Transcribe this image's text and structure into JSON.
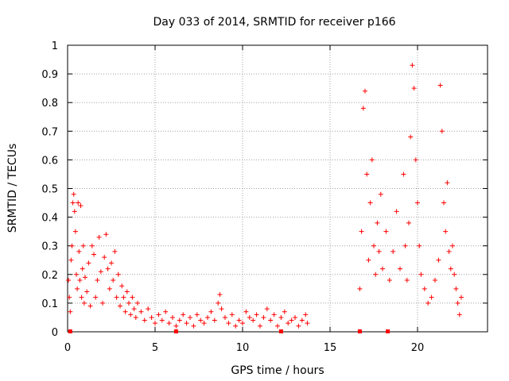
{
  "chart_data": {
    "type": "scatter",
    "title": "Day 033 of 2014, SRMTID for receiver p166",
    "xlabel": "GPS time / hours",
    "ylabel": "SRMTID / TECUs",
    "xlim": [
      0,
      24
    ],
    "ylim": [
      0,
      1
    ],
    "xticks": [
      0,
      5,
      10,
      15,
      20
    ],
    "xtick_labels": [
      "0",
      "5",
      "10",
      "15",
      "20"
    ],
    "yticks": [
      0,
      0.1,
      0.2,
      0.3,
      0.4,
      0.5,
      0.6,
      0.7,
      0.8,
      0.9,
      1
    ],
    "ytick_labels": [
      "0",
      "0.1",
      "0.2",
      "0.3",
      "0.4",
      "0.5",
      "0.6",
      "0.7",
      "0.8",
      "0.9",
      "1"
    ],
    "grid": true,
    "series": [
      {
        "name": "SRMTID",
        "marker": "plus",
        "color": "#ff0000",
        "points": [
          [
            0.05,
            0.18
          ],
          [
            0.1,
            0.12
          ],
          [
            0.15,
            0.07
          ],
          [
            0.2,
            0.25
          ],
          [
            0.25,
            0.3
          ],
          [
            0.3,
            0.45
          ],
          [
            0.35,
            0.48
          ],
          [
            0.4,
            0.42
          ],
          [
            0.45,
            0.35
          ],
          [
            0.5,
            0.2
          ],
          [
            0.55,
            0.15
          ],
          [
            0.6,
            0.45
          ],
          [
            0.65,
            0.28
          ],
          [
            0.7,
            0.18
          ],
          [
            0.75,
            0.44
          ],
          [
            0.8,
            0.12
          ],
          [
            0.85,
            0.22
          ],
          [
            0.9,
            0.3
          ],
          [
            0.95,
            0.1
          ],
          [
            1.0,
            0.19
          ],
          [
            1.1,
            0.14
          ],
          [
            1.2,
            0.24
          ],
          [
            1.3,
            0.09
          ],
          [
            1.4,
            0.3
          ],
          [
            1.5,
            0.27
          ],
          [
            1.6,
            0.12
          ],
          [
            1.7,
            0.18
          ],
          [
            1.8,
            0.33
          ],
          [
            1.9,
            0.21
          ],
          [
            2.0,
            0.1
          ],
          [
            2.1,
            0.26
          ],
          [
            2.2,
            0.34
          ],
          [
            2.3,
            0.22
          ],
          [
            2.4,
            0.15
          ],
          [
            2.5,
            0.24
          ],
          [
            2.6,
            0.18
          ],
          [
            2.7,
            0.28
          ],
          [
            2.8,
            0.12
          ],
          [
            2.9,
            0.2
          ],
          [
            3.0,
            0.09
          ],
          [
            3.1,
            0.16
          ],
          [
            3.2,
            0.12
          ],
          [
            3.3,
            0.07
          ],
          [
            3.4,
            0.14
          ],
          [
            3.5,
            0.1
          ],
          [
            3.6,
            0.06
          ],
          [
            3.7,
            0.12
          ],
          [
            3.8,
            0.08
          ],
          [
            3.9,
            0.05
          ],
          [
            4.0,
            0.1
          ],
          [
            4.2,
            0.07
          ],
          [
            4.4,
            0.04
          ],
          [
            4.6,
            0.08
          ],
          [
            4.8,
            0.05
          ],
          [
            5.0,
            0.03
          ],
          [
            5.2,
            0.06
          ],
          [
            5.4,
            0.04
          ],
          [
            5.6,
            0.07
          ],
          [
            5.8,
            0.03
          ],
          [
            6.0,
            0.05
          ],
          [
            6.2,
            0.02
          ],
          [
            6.4,
            0.04
          ],
          [
            6.6,
            0.06
          ],
          [
            6.8,
            0.03
          ],
          [
            7.0,
            0.05
          ],
          [
            7.2,
            0.02
          ],
          [
            7.4,
            0.06
          ],
          [
            7.6,
            0.04
          ],
          [
            7.8,
            0.03
          ],
          [
            8.0,
            0.05
          ],
          [
            8.2,
            0.07
          ],
          [
            8.4,
            0.04
          ],
          [
            8.6,
            0.1
          ],
          [
            8.7,
            0.13
          ],
          [
            8.8,
            0.08
          ],
          [
            9.0,
            0.05
          ],
          [
            9.2,
            0.03
          ],
          [
            9.4,
            0.06
          ],
          [
            9.6,
            0.02
          ],
          [
            9.8,
            0.04
          ],
          [
            10.0,
            0.03
          ],
          [
            10.2,
            0.07
          ],
          [
            10.4,
            0.05
          ],
          [
            10.6,
            0.04
          ],
          [
            10.8,
            0.06
          ],
          [
            11.0,
            0.02
          ],
          [
            11.2,
            0.05
          ],
          [
            11.4,
            0.08
          ],
          [
            11.6,
            0.04
          ],
          [
            11.8,
            0.06
          ],
          [
            12.0,
            0.02
          ],
          [
            12.2,
            0.05
          ],
          [
            12.4,
            0.07
          ],
          [
            12.6,
            0.03
          ],
          [
            12.8,
            0.04
          ],
          [
            13.0,
            0.05
          ],
          [
            13.2,
            0.02
          ],
          [
            13.4,
            0.04
          ],
          [
            13.6,
            0.06
          ],
          [
            13.7,
            0.03
          ],
          [
            16.7,
            0.15
          ],
          [
            16.8,
            0.35
          ],
          [
            16.9,
            0.78
          ],
          [
            17.0,
            0.84
          ],
          [
            17.1,
            0.55
          ],
          [
            17.2,
            0.25
          ],
          [
            17.3,
            0.45
          ],
          [
            17.4,
            0.6
          ],
          [
            17.5,
            0.3
          ],
          [
            17.6,
            0.2
          ],
          [
            17.7,
            0.38
          ],
          [
            17.8,
            0.28
          ],
          [
            17.9,
            0.48
          ],
          [
            18.0,
            0.22
          ],
          [
            18.2,
            0.35
          ],
          [
            18.4,
            0.18
          ],
          [
            18.6,
            0.28
          ],
          [
            18.8,
            0.42
          ],
          [
            19.0,
            0.22
          ],
          [
            19.2,
            0.55
          ],
          [
            19.3,
            0.3
          ],
          [
            19.4,
            0.18
          ],
          [
            19.5,
            0.38
          ],
          [
            19.6,
            0.68
          ],
          [
            19.7,
            0.93
          ],
          [
            19.8,
            0.85
          ],
          [
            19.9,
            0.6
          ],
          [
            20.0,
            0.45
          ],
          [
            20.1,
            0.3
          ],
          [
            20.2,
            0.2
          ],
          [
            20.4,
            0.15
          ],
          [
            20.6,
            0.1
          ],
          [
            20.8,
            0.12
          ],
          [
            21.0,
            0.18
          ],
          [
            21.2,
            0.25
          ],
          [
            21.3,
            0.86
          ],
          [
            21.4,
            0.7
          ],
          [
            21.5,
            0.45
          ],
          [
            21.6,
            0.35
          ],
          [
            21.7,
            0.52
          ],
          [
            21.8,
            0.28
          ],
          [
            21.9,
            0.22
          ],
          [
            22.0,
            0.3
          ],
          [
            22.1,
            0.2
          ],
          [
            22.2,
            0.15
          ],
          [
            22.3,
            0.1
          ],
          [
            22.4,
            0.06
          ],
          [
            22.5,
            0.12
          ]
        ]
      }
    ],
    "gap_markers": {
      "color": "#ff0000",
      "x": [
        0.15,
        6.2,
        12.2,
        16.7,
        18.3
      ],
      "y": 0
    }
  }
}
